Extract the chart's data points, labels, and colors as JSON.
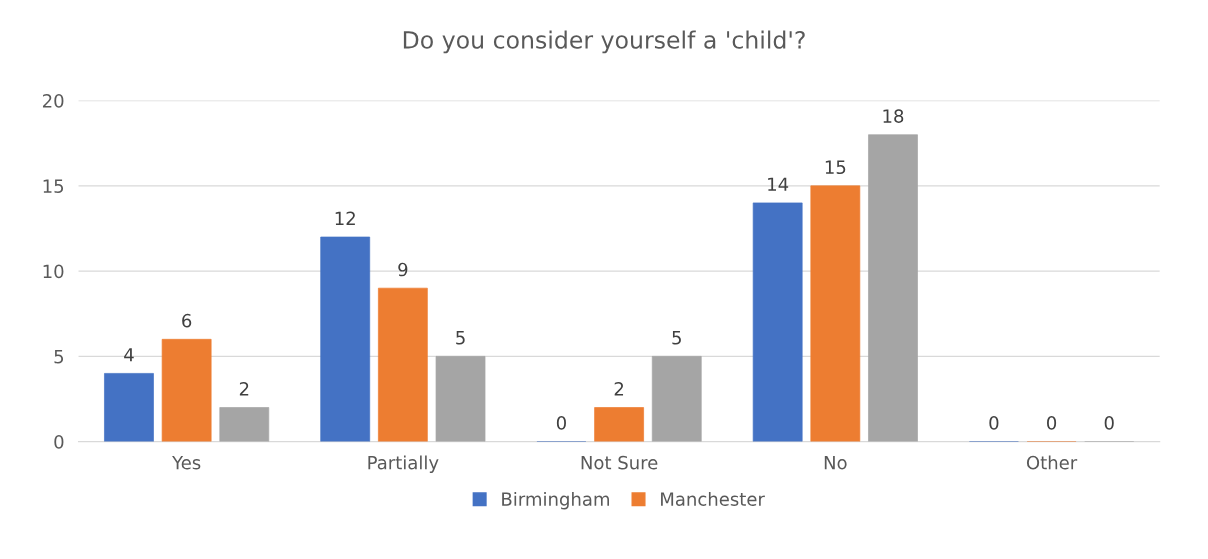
{
  "chart_data": {
    "type": "bar",
    "title": "Do you consider yourself a 'child'?",
    "categories": [
      "Yes",
      "Partially",
      "Not Sure",
      "No",
      "Other"
    ],
    "series": [
      {
        "name": "Birmingham",
        "color": "#4472c4",
        "values": [
          4,
          12,
          0,
          14,
          0
        ]
      },
      {
        "name": "Manchester",
        "color": "#ed7d31",
        "values": [
          6,
          9,
          2,
          15,
          0
        ]
      },
      {
        "color": "#a5a5a5",
        "values": [
          2,
          5,
          5,
          18,
          0
        ]
      }
    ],
    "ylim": [
      0,
      20
    ],
    "yticks": [
      0,
      5,
      10,
      15,
      20
    ],
    "grid": "y",
    "legend": "bottom",
    "data_labels": true
  }
}
